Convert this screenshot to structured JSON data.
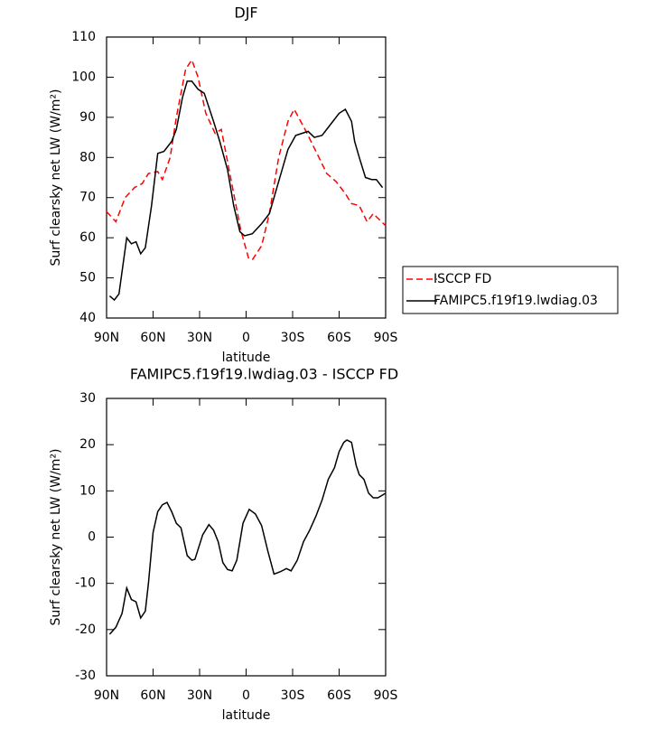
{
  "chart_data": [
    {
      "type": "line",
      "title": "DJF",
      "x_label": "latitude",
      "y_label": "Surf clearsky net LW (W/m²)",
      "xlim": [
        90,
        -90
      ],
      "xticks": [
        {
          "value": 90,
          "label": "90N"
        },
        {
          "value": 60,
          "label": "60N"
        },
        {
          "value": 30,
          "label": "30N"
        },
        0,
        {
          "value": -30,
          "label": "30S"
        },
        {
          "value": -60,
          "label": "60S"
        },
        {
          "value": -90,
          "label": "90S"
        }
      ],
      "ylim": [
        40,
        110
      ],
      "yticks": [
        40,
        50,
        60,
        70,
        80,
        90,
        100,
        110
      ],
      "legend": "right",
      "series": [
        {
          "name": "ISCCP FD",
          "color": "#ff0000",
          "line_style": "dashed",
          "x": [
            90,
            84,
            78,
            72,
            67,
            63,
            57,
            54,
            49,
            45,
            39,
            35,
            31,
            26,
            20,
            16,
            11,
            3.5,
            -1.5,
            -4,
            -10,
            -15,
            -21,
            -27,
            -31,
            -38,
            -47,
            -52,
            -58,
            -64,
            -68,
            -73,
            -78,
            -82,
            -90
          ],
          "values": [
            66.5,
            64,
            70,
            72.5,
            73.5,
            76,
            76.5,
            74.5,
            80,
            90,
            102,
            104.3,
            100,
            91,
            86,
            87,
            77,
            62,
            55,
            54.5,
            58,
            66,
            80,
            89,
            92,
            87,
            80,
            76,
            74,
            71,
            68.5,
            68,
            64,
            66,
            63
          ]
        },
        {
          "name": "FAMIPC5.f19f19.lwdiag.03",
          "color": "#000000",
          "line_style": "solid",
          "x": [
            88,
            85,
            82,
            77,
            74,
            71,
            68,
            65,
            61,
            57,
            53,
            48,
            45,
            41,
            38,
            35,
            31,
            27,
            21,
            17,
            12,
            8,
            4,
            1,
            -4,
            -10,
            -15,
            -21,
            -27,
            -32,
            -36,
            -40,
            -44,
            -49,
            -54,
            -60,
            -64,
            -68,
            -70,
            -73,
            -77,
            -81,
            -84,
            -88
          ],
          "values": [
            45.5,
            44.5,
            46,
            60,
            58.5,
            59,
            56,
            57.5,
            68,
            81,
            81.5,
            84,
            87,
            95,
            99,
            99,
            97,
            96,
            89,
            84,
            77,
            68,
            61.5,
            60.5,
            61,
            63.5,
            66,
            74,
            82,
            85.5,
            86,
            86.5,
            85,
            85.5,
            88,
            91,
            92,
            89,
            84,
            80,
            75,
            74.5,
            74.5,
            72.5
          ]
        }
      ]
    },
    {
      "type": "line",
      "title": "FAMIPC5.f19f19.lwdiag.03 - ISCCP FD",
      "x_label": "latitude",
      "y_label": "Surf clearsky net LW (W/m²)",
      "xlim": [
        90,
        -90
      ],
      "xticks": [
        {
          "value": 90,
          "label": "90N"
        },
        {
          "value": 60,
          "label": "60N"
        },
        {
          "value": 30,
          "label": "30N"
        },
        0,
        {
          "value": -30,
          "label": "30S"
        },
        {
          "value": -60,
          "label": "60S"
        },
        {
          "value": -90,
          "label": "90S"
        }
      ],
      "ylim": [
        -30,
        30
      ],
      "yticks": [
        -30,
        -20,
        -10,
        0,
        10,
        20,
        30
      ],
      "series": [
        {
          "color": "#000000",
          "line_style": "solid",
          "x": [
            88,
            84,
            80,
            77,
            74,
            71,
            68,
            65,
            63,
            60,
            57,
            54,
            51,
            48,
            45,
            42,
            38,
            35,
            33,
            28,
            24,
            21,
            18,
            15,
            12,
            9,
            6,
            2,
            -2,
            -6,
            -10,
            -14,
            -18,
            -22,
            -26,
            -29,
            -33,
            -37,
            -41,
            -45,
            -49,
            -53,
            -57,
            -60,
            -63,
            -65,
            -68,
            -71,
            -73,
            -76,
            -79,
            -82,
            -85,
            -90
          ],
          "values": [
            -21,
            -19.5,
            -16.5,
            -11,
            -13.5,
            -14,
            -17.5,
            -16,
            -10,
            1,
            5.5,
            7,
            7.5,
            5.5,
            3,
            2,
            -4,
            -5,
            -4.8,
            0.5,
            2.7,
            1.5,
            -1,
            -5.5,
            -7,
            -7.3,
            -5,
            3,
            6,
            5,
            2.5,
            -3,
            -8,
            -7.5,
            -6.8,
            -7.3,
            -5,
            -1,
            1.5,
            4.5,
            8,
            12.5,
            15,
            18.5,
            20.5,
            21,
            20.5,
            15.5,
            13.5,
            12.5,
            9.5,
            8.5,
            8.5,
            9.5
          ]
        }
      ]
    }
  ]
}
